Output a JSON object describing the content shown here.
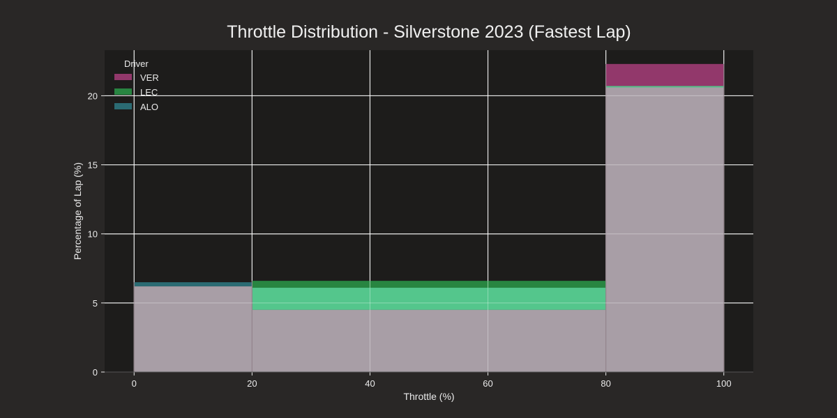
{
  "chart_data": {
    "type": "bar",
    "title": "Throttle Distribution - Silverstone 2023 (Fastest Lap)",
    "xlabel": "Throttle (%)",
    "ylabel": "Percentage of Lap (%)",
    "bin_edges": [
      0,
      20,
      80,
      100
    ],
    "xlim": [
      -5,
      105
    ],
    "ylim": [
      0,
      23.3
    ],
    "xticks": [
      0,
      20,
      40,
      60,
      80,
      100
    ],
    "yticks": [
      0,
      5,
      10,
      15,
      20
    ],
    "grid": true,
    "legend_title": "Driver",
    "legend_position": "top-left",
    "series": [
      {
        "name": "VER",
        "color": "#b0407f",
        "values": [
          6.2,
          4.5,
          22.3
        ]
      },
      {
        "name": "LEC",
        "color": "#2ca04b",
        "values": [
          6.2,
          6.6,
          20.7
        ]
      },
      {
        "name": "ALO",
        "color": "#2f7f8a",
        "values": [
          6.5,
          6.1,
          20.6
        ]
      }
    ],
    "overlap_color": "#a89ea6"
  }
}
